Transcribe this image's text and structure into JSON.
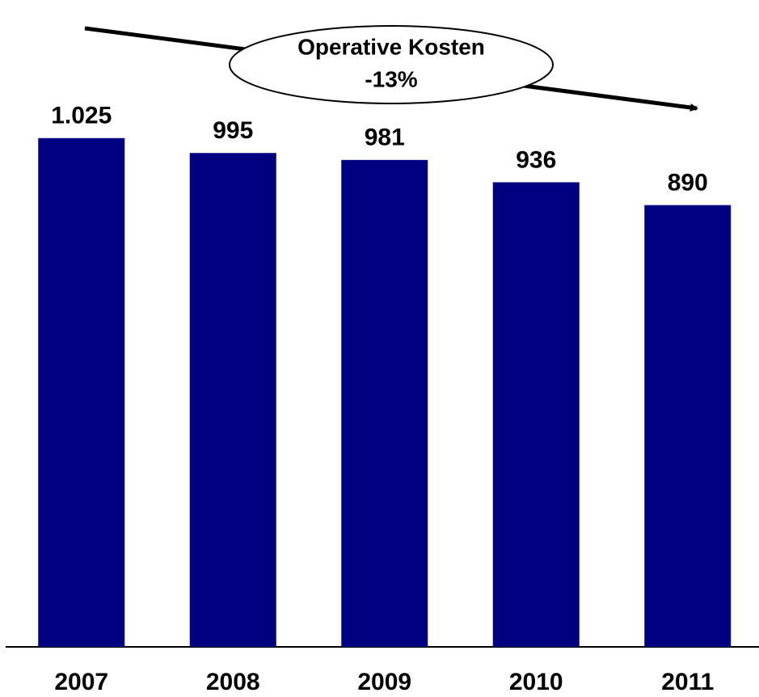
{
  "chart_data": {
    "type": "bar",
    "annotation": [
      "Operative Kosten",
      "-13%"
    ],
    "categories": [
      "2007",
      "2008",
      "2009",
      "2010",
      "2011"
    ],
    "values": [
      1025,
      995,
      981,
      936,
      890
    ],
    "value_labels": [
      "1.025",
      "995",
      "981",
      "936",
      "890"
    ],
    "color": "#000080",
    "ylim": [
      0,
      1300
    ],
    "grid": false
  }
}
